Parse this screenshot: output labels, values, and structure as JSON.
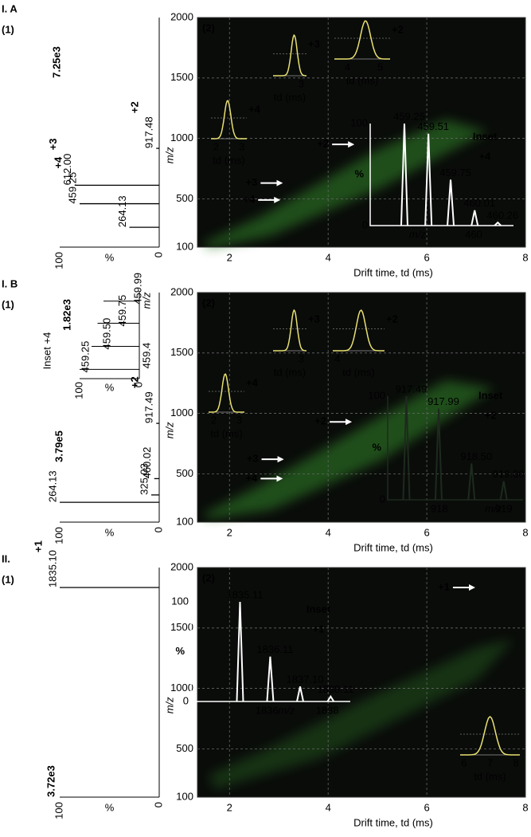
{
  "panels": [
    {
      "title": "I. A",
      "spectrum_tag": "(1)",
      "map_tag": "(2)",
      "spectrum": {
        "scale": "7.25e3",
        "unit": "%",
        "ticks": [
          100,
          0
        ],
        "peaks": [
          264.13,
          459.25,
          {
            "value": 612,
            "label": "612.00"
          },
          917.48
        ],
        "intensities": [
          30,
          80,
          85,
          3
        ],
        "charges": [
          null,
          "+4",
          "+3",
          "+2"
        ]
      },
      "map": {
        "xlabel": "Drift time, td (ms)",
        "ylabel": "m/z",
        "xlim": [
          1.35,
          8
        ],
        "xticks": [
          2,
          4,
          6,
          8
        ],
        "ylim": [
          100,
          2000
        ],
        "yticks": [
          100,
          500,
          1000,
          1500,
          2000
        ],
        "ions": [
          {
            "label": "+2",
            "td": 4.5,
            "mz": 950
          },
          {
            "label": "+3",
            "td": 3.05,
            "mz": 630
          },
          {
            "label": "+4",
            "td": 3.0,
            "mz": 490
          }
        ],
        "drift_insets": [
          {
            "charge": "+4",
            "xlabel": "td (ms)",
            "xlim": [
              1.8,
              3.2
            ],
            "xticks": [
              2,
              3
            ],
            "apex": 2.45
          },
          {
            "charge": "+3",
            "xlabel": "td (ms)",
            "xlim": [
              2.2,
              3.15
            ],
            "xticks": [
              3
            ],
            "apex": 2.8
          },
          {
            "charge": "+2",
            "xlabel": "td (ms)",
            "xlim": [
              3.6,
              5.3
            ],
            "xticks": [
              4,
              5
            ],
            "apex": 4.55
          }
        ],
        "mass_inset": {
          "title": "Inset",
          "charge": "+4",
          "color": "#ffffff",
          "unit": "%",
          "xlabel": "m/z",
          "xlim": [
            458.88,
            460.43
          ],
          "xticks": [
            460
          ],
          "ylim": [
            0,
            100
          ],
          "yticks": [
            100,
            0
          ],
          "peaks": [
            459.25,
            459.51,
            459.75,
            460.01,
            460.26
          ],
          "intensities": [
            100,
            90,
            45,
            15,
            3
          ]
        }
      }
    },
    {
      "title": "I. B",
      "spectrum_tag": "(1)",
      "map_tag": "(2)",
      "spectrum": {
        "scale": "3.79e5",
        "unit": "%",
        "ticks": [
          100,
          0
        ],
        "peaks": [
          264.13,
          325.03,
          460.02,
          917.49
        ],
        "intensities": [
          100,
          8,
          5,
          3
        ],
        "charges": [
          null,
          null,
          null,
          "+2"
        ],
        "inset": {
          "title": "Inset +4",
          "scale": "1.82e3",
          "unit": "%",
          "ticks": [
            100,
            0
          ],
          "mz_label": "m/z",
          "mzlim": [
            459.15,
            460.1
          ],
          "mz_ticks": [
            459.4
          ],
          "peaks": [
            459.25,
            {
              "value": 459.5,
              "label": "459.50"
            },
            459.75,
            459.99
          ],
          "intensities": [
            100,
            80,
            70,
            60
          ]
        }
      },
      "map": {
        "xlabel": "Drift time, td (ms)",
        "ylabel": "m/z",
        "xlim": [
          1.35,
          8
        ],
        "xticks": [
          2,
          4,
          6,
          8
        ],
        "ylim": [
          100,
          2000
        ],
        "yticks": [
          100,
          500,
          1000,
          1500,
          2000
        ],
        "ions": [
          {
            "label": "+2",
            "td": 4.45,
            "mz": 930
          },
          {
            "label": "+3",
            "td": 3.07,
            "mz": 620
          },
          {
            "label": "+4",
            "td": 3.05,
            "mz": 460
          }
        ],
        "drift_insets": [
          {
            "charge": "+3",
            "xlabel": "td (ms)",
            "xlim": [
              2.2,
              3.15
            ],
            "xticks": [
              3
            ],
            "apex": 2.8
          },
          {
            "charge": "+2",
            "xlabel": "td (ms)",
            "xlim": [
              3.9,
              5.0
            ],
            "xticks": [
              4
            ],
            "apex": 4.5
          },
          {
            "charge": "+4",
            "xlabel": "td (ms)",
            "xlim": [
              1.8,
              3.2
            ],
            "xticks": [
              2,
              3
            ],
            "apex": 2.45
          }
        ],
        "mass_inset": {
          "title": "Inset",
          "charge": "+2",
          "color": "#1e2a1e",
          "unit": "%",
          "xlabel": "m/z",
          "xlim": [
            917.2,
            919.3
          ],
          "xticks": [
            918,
            919
          ],
          "ylim": [
            0,
            100
          ],
          "yticks": [
            100,
            0
          ],
          "peaks": [
            917.49,
            917.99,
            {
              "value": 918.5,
              "label": "918.50"
            },
            {
              "value": 919,
              "label": "919.00"
            }
          ],
          "intensities": [
            100,
            88,
            35,
            18
          ]
        }
      }
    },
    {
      "title": "II.",
      "spectrum_tag": "(1)",
      "map_tag": "(2)",
      "spectrum": {
        "scale": "3.72e3",
        "unit": "%",
        "ticks": [
          100,
          0
        ],
        "peaks": [
          {
            "value": 1835.1,
            "label": "1835.10"
          }
        ],
        "intensities": [
          100
        ],
        "charges": [
          "+1"
        ]
      },
      "map": {
        "xlabel": "Drift time, td (ms)",
        "ylabel": "m/z",
        "xlim": [
          1.35,
          8
        ],
        "xticks": [
          2,
          4,
          6,
          8
        ],
        "ylim": [
          100,
          2000
        ],
        "yticks": [
          100,
          500,
          1000,
          1500,
          2000
        ],
        "ions": [
          {
            "label": "+1",
            "td": 6.95,
            "mz": 1835
          }
        ],
        "drift_insets": [
          {
            "xlabel": "td (ms)",
            "xlim": [
              5.85,
              8.15
            ],
            "xticks": [
              6,
              7,
              8
            ],
            "apex": 7.0
          }
        ],
        "mass_inset": {
          "title": "Inset",
          "charge": "+1",
          "color": "#ffffff",
          "unit": "%",
          "xlabel": "m/z",
          "xlim": [
            1833.49,
            1838.76
          ],
          "xticks": [
            1836,
            1838
          ],
          "ylim": [
            0,
            100
          ],
          "yticks": [
            100,
            0
          ],
          "peaks": [
            1835.11,
            1836.11,
            {
              "value": 1837.1,
              "label": "1837.10"
            },
            1838.11
          ],
          "intensities": [
            100,
            45,
            15,
            5
          ]
        }
      }
    }
  ]
}
